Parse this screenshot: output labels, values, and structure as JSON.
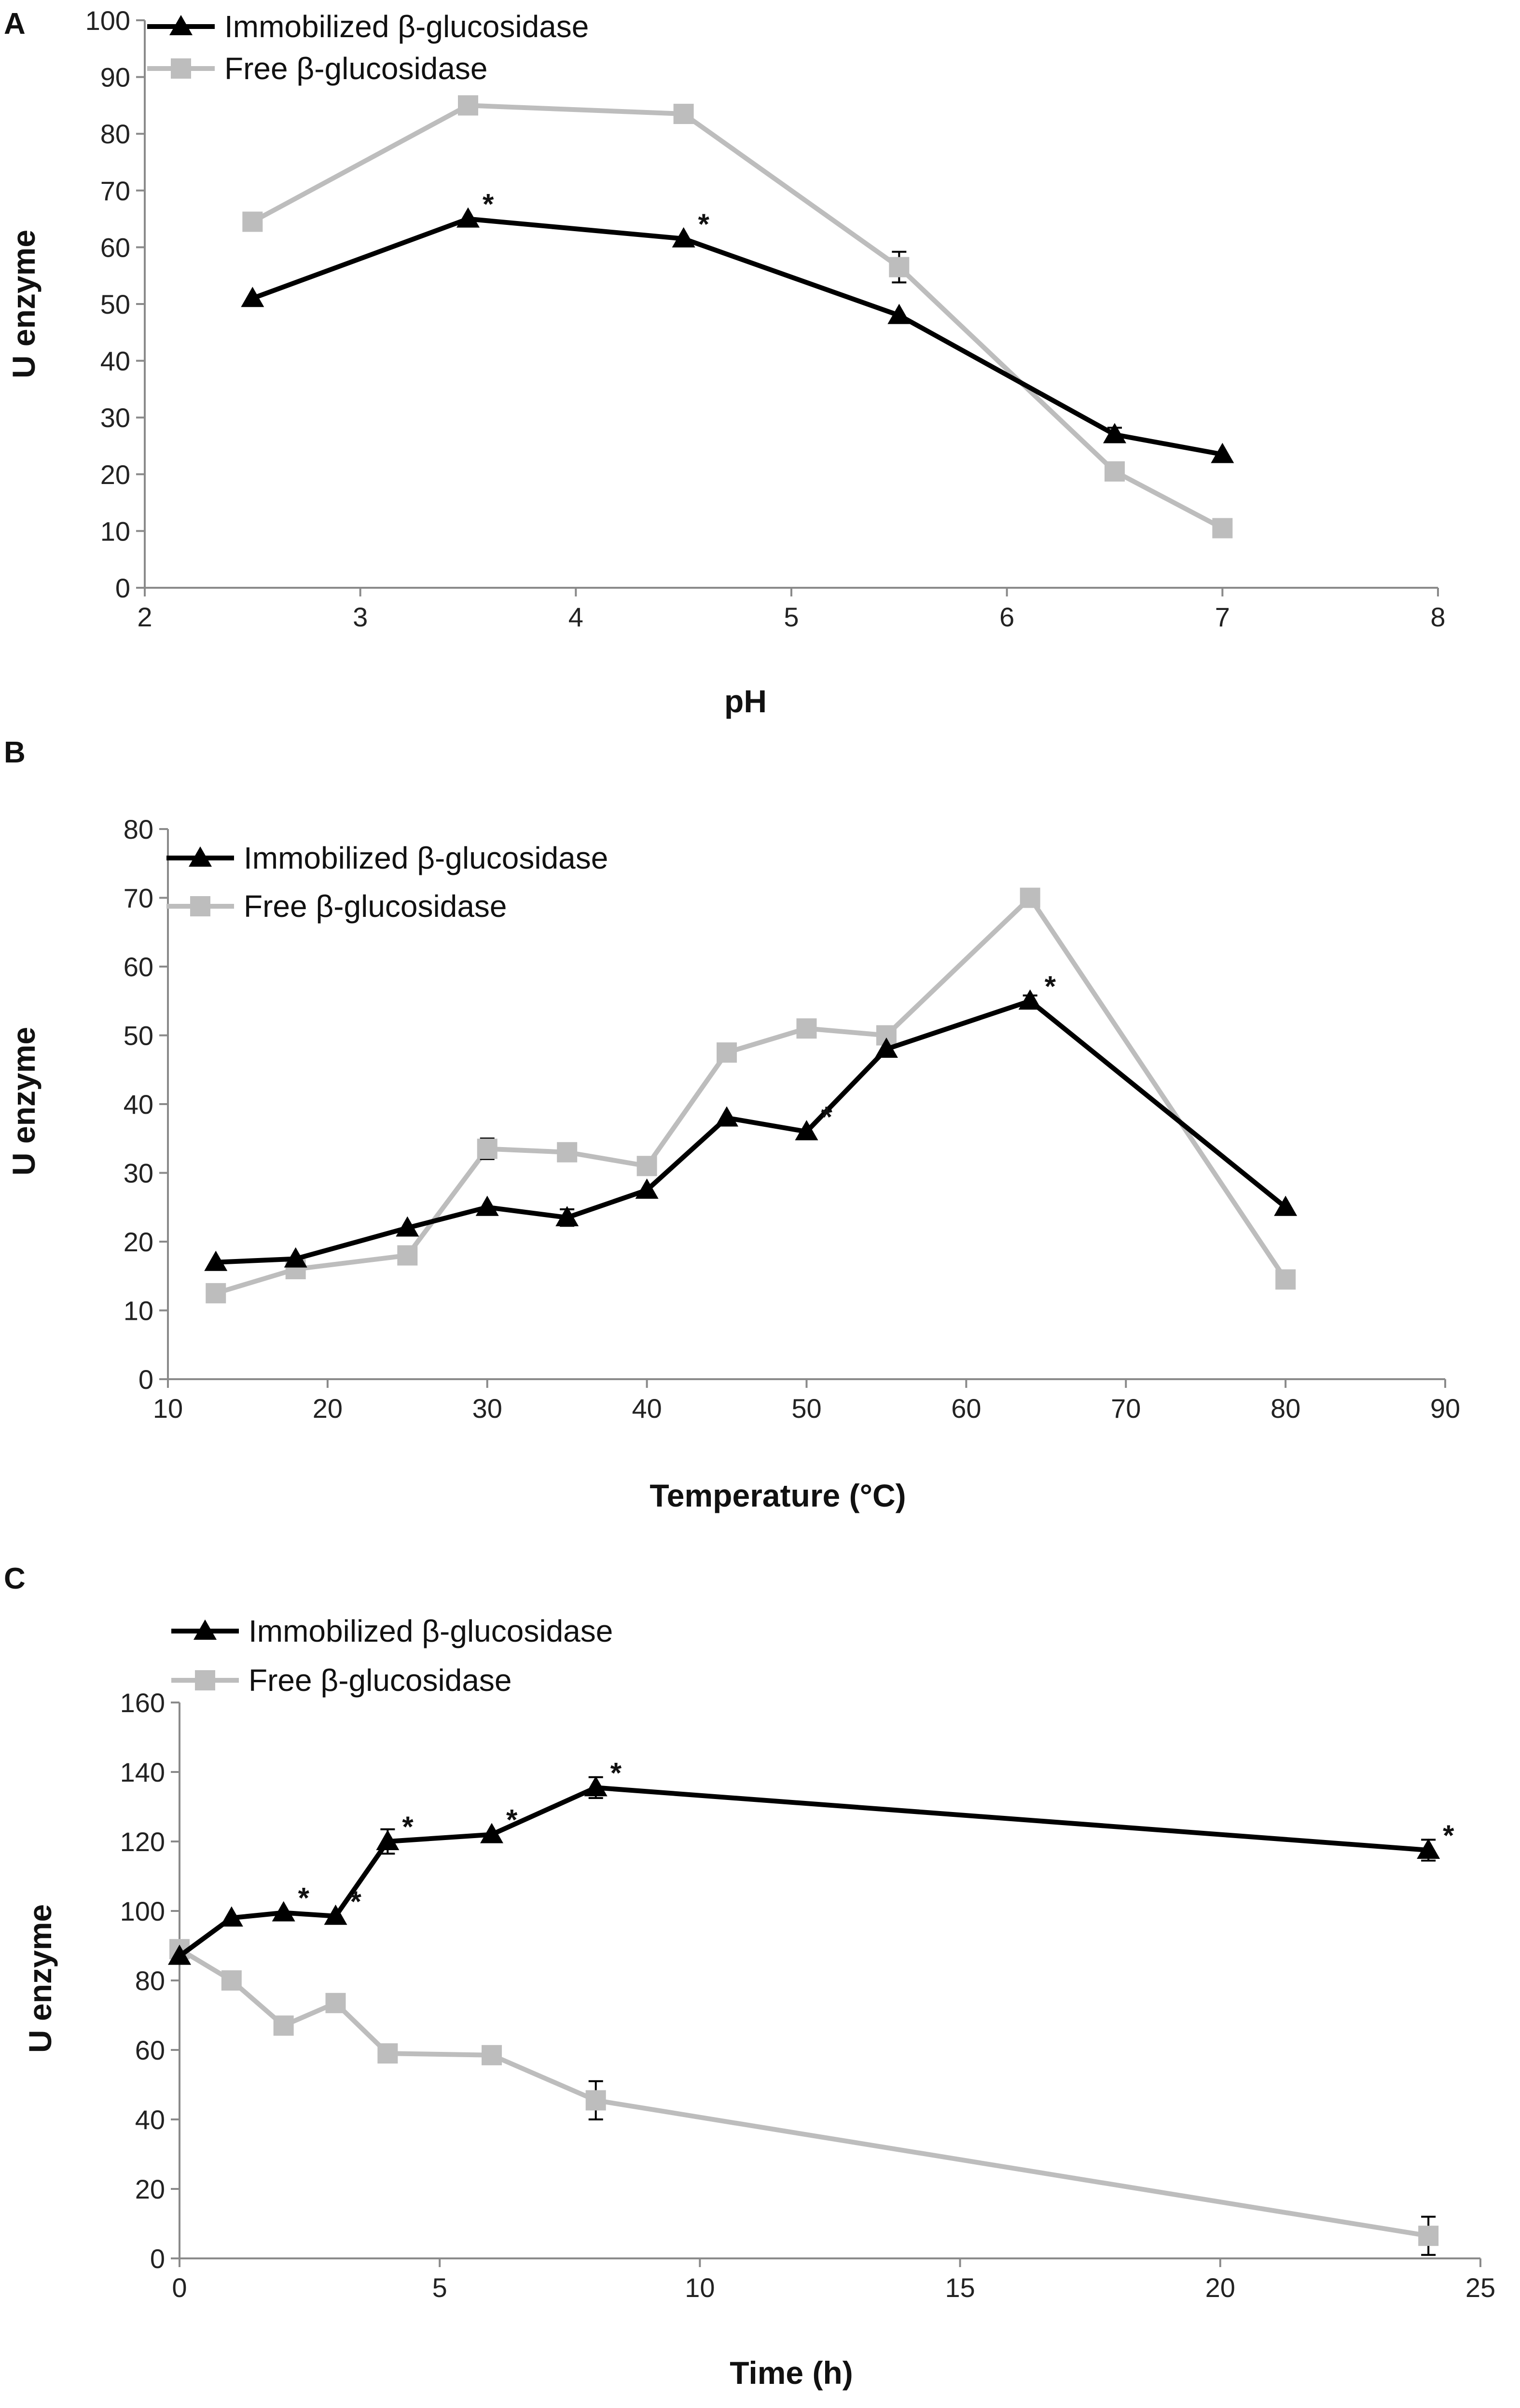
{
  "colors": {
    "immobilized": "#000000",
    "free": "#bdbdbd",
    "axis": "#8a8a8a"
  },
  "chart_data": [
    {
      "type": "line",
      "panel": "A",
      "xlabel": "pH",
      "ylabel": "U enzyme",
      "xlim": [
        2,
        8
      ],
      "ylim": [
        0,
        100
      ],
      "xticks": [
        2,
        3,
        4,
        5,
        6,
        7,
        8
      ],
      "yticks": [
        0,
        10,
        20,
        30,
        40,
        50,
        60,
        70,
        80,
        90,
        100
      ],
      "legend_position": "top-left",
      "series": [
        {
          "name": "Immobilized β-glucosidase",
          "key": "immobilized",
          "marker": "triangle",
          "x": [
            2.5,
            3.5,
            4.5,
            5.5,
            6.5,
            7
          ],
          "values": [
            51,
            65,
            61.5,
            48,
            27,
            23.5
          ],
          "errors": [
            0,
            0,
            0,
            0,
            1.2,
            0
          ],
          "significant": [
            false,
            true,
            true,
            false,
            false,
            false
          ]
        },
        {
          "name": "Free β-glucosidase",
          "key": "free",
          "marker": "square",
          "x": [
            2.5,
            3.5,
            4.5,
            5.5,
            6.5,
            7
          ],
          "values": [
            64.5,
            85,
            83.5,
            56.5,
            20.5,
            10.5
          ],
          "errors": [
            0,
            1.5,
            0,
            2.7,
            0,
            0
          ],
          "significant": [
            false,
            false,
            false,
            false,
            false,
            false
          ]
        }
      ]
    },
    {
      "type": "line",
      "panel": "B",
      "xlabel": "Temperature (°C)",
      "ylabel": "U enzyme",
      "xlim": [
        10,
        90
      ],
      "ylim": [
        0,
        80
      ],
      "xticks": [
        10,
        20,
        30,
        40,
        50,
        60,
        70,
        80,
        90
      ],
      "yticks": [
        0,
        10,
        20,
        30,
        40,
        50,
        60,
        70,
        80
      ],
      "legend_position": "top-left",
      "series": [
        {
          "name": "Immobilized β-glucosidase",
          "key": "immobilized",
          "marker": "triangle",
          "x": [
            13,
            18,
            25,
            30,
            35,
            40,
            45,
            50,
            55,
            64,
            80
          ],
          "values": [
            17,
            17.5,
            22,
            25,
            23.5,
            27.5,
            38,
            36,
            48,
            55,
            25
          ],
          "errors": [
            0,
            0,
            0,
            0,
            1.2,
            0,
            0,
            0,
            0,
            0.8,
            0
          ],
          "significant": [
            false,
            false,
            false,
            false,
            false,
            false,
            false,
            true,
            false,
            true,
            false
          ]
        },
        {
          "name": "Free  β-glucosidase",
          "key": "free",
          "marker": "square",
          "x": [
            13,
            18,
            25,
            30,
            35,
            40,
            45,
            50,
            55,
            64,
            80
          ],
          "values": [
            12.5,
            16,
            18,
            33.5,
            33,
            31,
            47.5,
            51,
            50,
            70,
            14.5
          ],
          "errors": [
            0,
            0,
            0,
            1.5,
            0,
            0,
            0,
            0,
            0,
            0.5,
            0
          ],
          "significant": [
            false,
            false,
            false,
            false,
            false,
            false,
            false,
            false,
            false,
            false,
            false
          ]
        }
      ]
    },
    {
      "type": "line",
      "panel": "C",
      "xlabel": "Time (h)",
      "ylabel": "U enzyme",
      "xlim": [
        0,
        25
      ],
      "ylim": [
        0,
        160
      ],
      "xticks": [
        0,
        5,
        10,
        15,
        20,
        25
      ],
      "yticks": [
        0,
        20,
        40,
        60,
        80,
        100,
        120,
        140,
        160
      ],
      "legend_position": "top-left",
      "series": [
        {
          "name": "Immobilized β-glucosidase",
          "key": "immobilized",
          "marker": "triangle",
          "x": [
            0,
            1,
            2,
            3,
            4,
            6,
            8,
            24
          ],
          "values": [
            87,
            98,
            99.5,
            98.5,
            120,
            122,
            135.5,
            117.5
          ],
          "errors": [
            0,
            0,
            0,
            0,
            3.5,
            0,
            3,
            3
          ],
          "significant": [
            false,
            false,
            true,
            true,
            true,
            true,
            true,
            true
          ]
        },
        {
          "name": "Free β-glucosidase",
          "key": "free",
          "marker": "square",
          "x": [
            0,
            1,
            2,
            3,
            4,
            6,
            8,
            24
          ],
          "values": [
            89,
            80,
            67,
            73.5,
            59,
            58.5,
            45.5,
            6.5
          ],
          "errors": [
            0,
            0,
            0,
            0,
            0,
            0,
            5.5,
            5.5
          ],
          "significant": [
            false,
            false,
            false,
            false,
            false,
            false,
            false,
            false
          ]
        }
      ]
    }
  ]
}
